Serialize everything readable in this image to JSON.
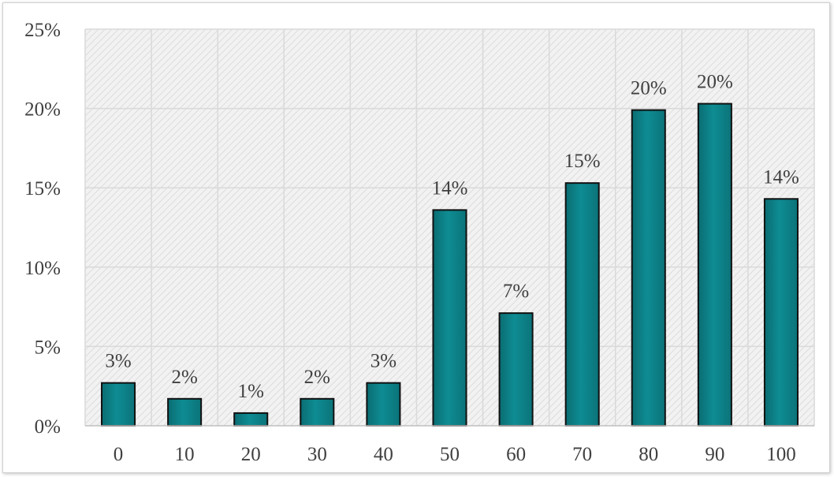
{
  "chart_data": {
    "type": "bar",
    "categories": [
      "0",
      "10",
      "20",
      "30",
      "40",
      "50",
      "60",
      "70",
      "80",
      "90",
      "100"
    ],
    "values": [
      2.7,
      1.7,
      0.8,
      1.7,
      2.7,
      13.6,
      7.1,
      15.3,
      19.9,
      20.3,
      14.3
    ],
    "data_labels": [
      "3%",
      "2%",
      "1%",
      "2%",
      "3%",
      "14%",
      "7%",
      "15%",
      "20%",
      "20%",
      "14%"
    ],
    "ylim": [
      0,
      25
    ],
    "yticks": [
      0,
      5,
      10,
      15,
      20,
      25
    ],
    "ytick_labels": [
      "0%",
      "5%",
      "10%",
      "15%",
      "20%",
      "25%"
    ],
    "grid": true,
    "legend": "none",
    "colors": {
      "bar_fill": "#0e8c93",
      "bar_edge": "#111111",
      "grid": "#d9d9d9",
      "plot_bg": "#f2f2f2",
      "hatch": "#dcdcdc"
    }
  }
}
